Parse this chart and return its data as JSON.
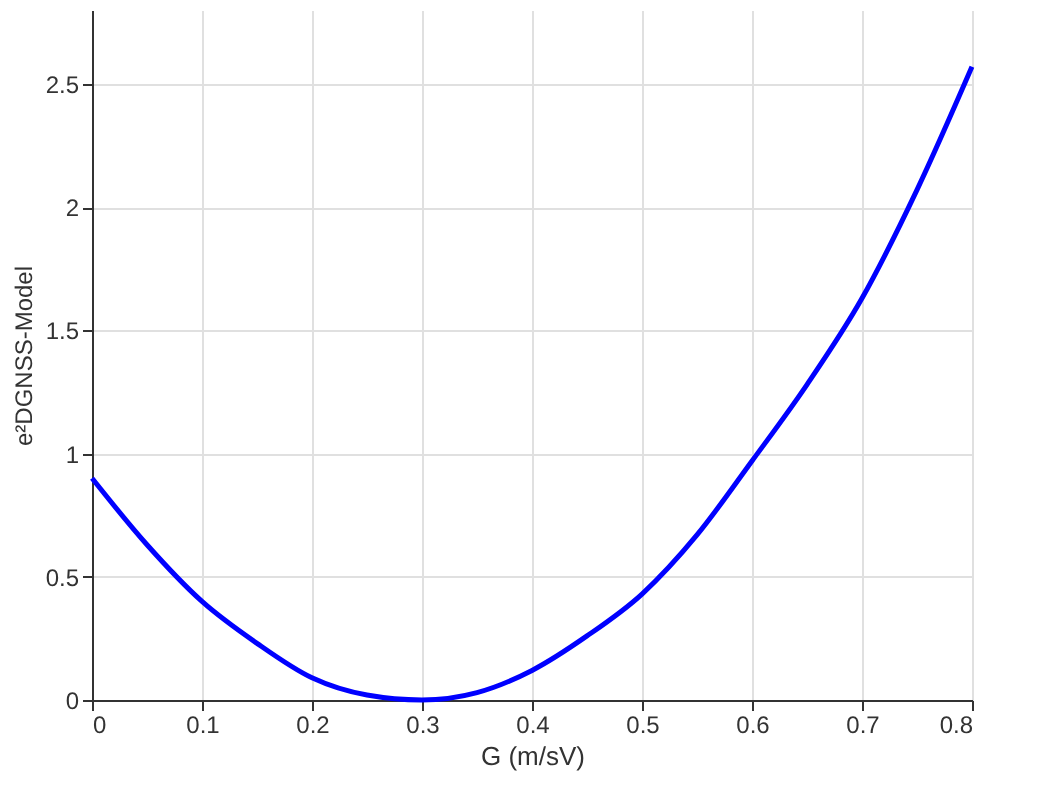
{
  "chart_data": {
    "type": "line",
    "xlabel": "G (m/sV)",
    "ylabel": "e²DGNSS-Model",
    "x": [
      0,
      0.05,
      0.1,
      0.15,
      0.2,
      0.25,
      0.3,
      0.35,
      0.4,
      0.45,
      0.5,
      0.55,
      0.6,
      0.65,
      0.7,
      0.75,
      0.8
    ],
    "series": [
      {
        "color": "#0000ff",
        "values": [
          0.9,
          0.63,
          0.4,
          0.23,
          0.09,
          0.02,
          0.0,
          0.03,
          0.12,
          0.26,
          0.43,
          0.67,
          0.97,
          1.28,
          1.63,
          2.07,
          2.57
        ]
      }
    ],
    "xlim": [
      0,
      0.8
    ],
    "ylim": [
      0,
      2.8
    ],
    "xticks": [
      0,
      0.1,
      0.2,
      0.3,
      0.4,
      0.5,
      0.6,
      0.7,
      0.8
    ],
    "yticks": [
      0,
      0.5,
      1,
      1.5,
      2,
      2.5
    ],
    "grid": true,
    "marker": "none",
    "line_style": "solid"
  }
}
